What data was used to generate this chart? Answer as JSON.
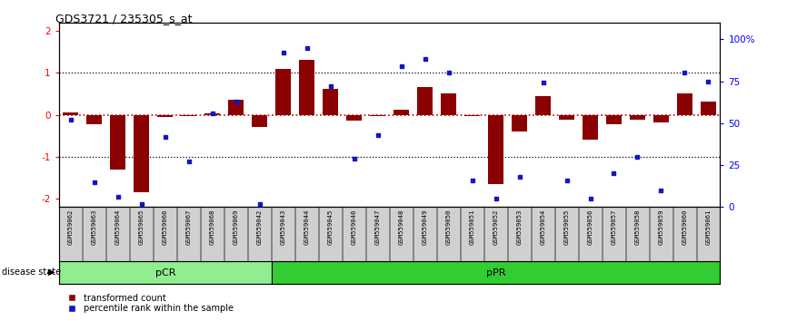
{
  "title": "GDS3721 / 235305_s_at",
  "samples": [
    "GSM559062",
    "GSM559063",
    "GSM559064",
    "GSM559065",
    "GSM559066",
    "GSM559067",
    "GSM559068",
    "GSM559069",
    "GSM559042",
    "GSM559043",
    "GSM559044",
    "GSM559045",
    "GSM559046",
    "GSM559047",
    "GSM559048",
    "GSM559049",
    "GSM559050",
    "GSM559051",
    "GSM559052",
    "GSM559053",
    "GSM559054",
    "GSM559055",
    "GSM559056",
    "GSM559057",
    "GSM559058",
    "GSM559059",
    "GSM559060",
    "GSM559061"
  ],
  "bar_values": [
    0.05,
    -0.22,
    -1.3,
    -1.85,
    -0.05,
    -0.03,
    0.03,
    0.35,
    -0.3,
    1.1,
    1.3,
    0.62,
    -0.15,
    -0.03,
    0.12,
    0.65,
    0.5,
    -0.03,
    -1.65,
    -0.4,
    0.45,
    -0.12,
    -0.6,
    -0.22,
    -0.12,
    -0.18,
    0.5,
    0.32
  ],
  "dot_values": [
    52,
    15,
    6,
    2,
    42,
    27,
    56,
    63,
    2,
    92,
    95,
    72,
    29,
    43,
    84,
    88,
    80,
    16,
    5,
    18,
    74,
    16,
    5,
    20,
    30,
    10,
    80,
    75
  ],
  "pCR_count": 9,
  "pPR_count": 19,
  "bar_color": "#8B0000",
  "dot_color": "#1414C8",
  "zero_line_color": "#CC0000",
  "dotted_line_color": "#000000",
  "background_color": "#FFFFFF",
  "pCR_color": "#90EE90",
  "pPR_color": "#32CD32",
  "ylim": [
    -2.2,
    2.2
  ],
  "y2lim": [
    0,
    110
  ],
  "yticks_left": [
    -2,
    -1,
    0,
    1,
    2
  ],
  "yticks_right": [
    0,
    25,
    50,
    75,
    100
  ],
  "hlines": [
    -1,
    1
  ],
  "legend_red": "transformed count",
  "legend_blue": "percentile rank within the sample",
  "disease_label": "disease state"
}
